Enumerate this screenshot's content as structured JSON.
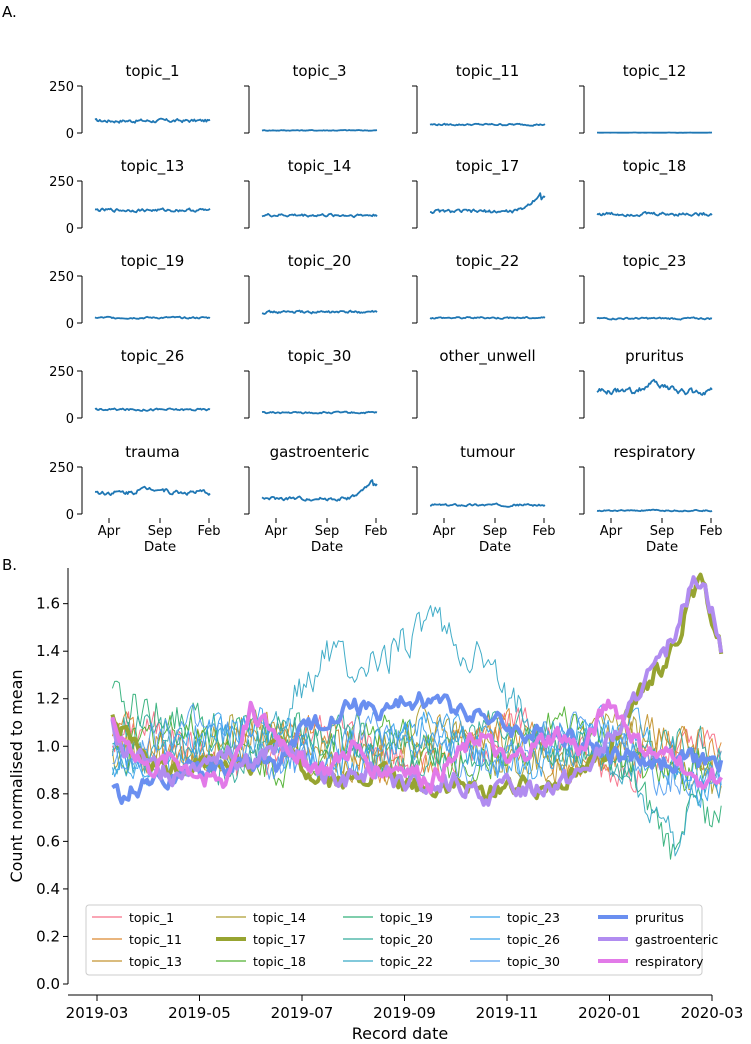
{
  "figure": {
    "panel_a_label": "A.",
    "panel_b_label": "B."
  },
  "chart_data": [
    {
      "type": "line",
      "layout": "small-multiples grid, 5 rows x 4 columns",
      "title": "",
      "xlabel": "Date",
      "ylabel": "",
      "ylim": [
        0,
        250
      ],
      "y_ticks": [
        "0",
        "250"
      ],
      "x_ticks": [
        "Apr",
        "Sep",
        "Feb"
      ],
      "series_color": "#1f77b4",
      "panels": [
        {
          "title": "topic_1",
          "level": 65,
          "noise": 8,
          "trend": "flat"
        },
        {
          "title": "topic_3",
          "level": 14,
          "noise": 2,
          "trend": "flat"
        },
        {
          "title": "topic_11",
          "level": 45,
          "noise": 4,
          "trend": "flat"
        },
        {
          "title": "topic_12",
          "level": 2,
          "noise": 0.5,
          "trend": "flat"
        },
        {
          "title": "topic_13",
          "level": 95,
          "noise": 7,
          "trend": "flat"
        },
        {
          "title": "topic_14",
          "level": 68,
          "noise": 7,
          "trend": "flat"
        },
        {
          "title": "topic_17",
          "level": 88,
          "noise": 8,
          "trend": "rise",
          "peak": 180
        },
        {
          "title": "topic_18",
          "level": 75,
          "noise": 8,
          "trend": "flat"
        },
        {
          "title": "topic_19",
          "level": 28,
          "noise": 4,
          "trend": "flat"
        },
        {
          "title": "topic_20",
          "level": 58,
          "noise": 6,
          "trend": "flat"
        },
        {
          "title": "topic_22",
          "level": 28,
          "noise": 4,
          "trend": "flat"
        },
        {
          "title": "topic_23",
          "level": 24,
          "noise": 4,
          "trend": "flat"
        },
        {
          "title": "topic_26",
          "level": 45,
          "noise": 5,
          "trend": "flat"
        },
        {
          "title": "topic_30",
          "level": 28,
          "noise": 4,
          "trend": "flat"
        },
        {
          "title": "other_unwell",
          "level": null,
          "noise": 0,
          "trend": "none"
        },
        {
          "title": "pruritus",
          "level": 140,
          "noise": 14,
          "trend": "hump",
          "peak": 185
        },
        {
          "title": "trauma",
          "level": 115,
          "noise": 10,
          "trend": "hump",
          "peak": 140
        },
        {
          "title": "gastroenteric",
          "level": 82,
          "noise": 8,
          "trend": "rise",
          "peak": 170
        },
        {
          "title": "tumour",
          "level": 48,
          "noise": 5,
          "trend": "flat"
        },
        {
          "title": "respiratory",
          "level": 18,
          "noise": 3,
          "trend": "flat"
        }
      ]
    },
    {
      "type": "line",
      "title": "",
      "xlabel": "Record date",
      "ylabel": "Count normalised to mean",
      "ylim": [
        0.0,
        1.75
      ],
      "y_ticks": [
        "0.0",
        "0.2",
        "0.4",
        "0.6",
        "0.8",
        "1.0",
        "1.2",
        "1.4",
        "1.6"
      ],
      "x_range_months": [
        0,
        12.2
      ],
      "x_ticks": [
        "2019-03",
        "2019-05",
        "2019-07",
        "2019-09",
        "2019-11",
        "2020-01",
        "2020-03"
      ],
      "legend_position": "bottom",
      "series": [
        {
          "name": "topic_1",
          "color": "#f77189",
          "kind": "thin"
        },
        {
          "name": "topic_11",
          "color": "#dc8932",
          "kind": "thin"
        },
        {
          "name": "topic_13",
          "color": "#c39532",
          "kind": "thin"
        },
        {
          "name": "topic_14",
          "color": "#ae9d31",
          "kind": "thin"
        },
        {
          "name": "topic_17",
          "color": "#97a431",
          "kind": "bold",
          "values": [
            [
              0.3,
              1.12
            ],
            [
              0.5,
              1.05
            ],
            [
              1.0,
              0.93
            ],
            [
              1.5,
              0.9
            ],
            [
              2.0,
              0.93
            ],
            [
              2.5,
              0.95
            ],
            [
              3.0,
              0.92
            ],
            [
              3.5,
              1.02
            ],
            [
              4.0,
              0.9
            ],
            [
              4.5,
              0.86
            ],
            [
              5.0,
              0.85
            ],
            [
              5.5,
              0.9
            ],
            [
              6.0,
              0.84
            ],
            [
              6.5,
              0.82
            ],
            [
              7.0,
              0.84
            ],
            [
              7.5,
              0.8
            ],
            [
              8.0,
              0.84
            ],
            [
              8.5,
              0.82
            ],
            [
              9.0,
              0.86
            ],
            [
              9.5,
              0.9
            ],
            [
              10.0,
              1.0
            ],
            [
              10.3,
              1.08
            ],
            [
              10.6,
              1.22
            ],
            [
              11.0,
              1.33
            ],
            [
              11.3,
              1.45
            ],
            [
              11.6,
              1.62
            ],
            [
              11.8,
              1.68
            ],
            [
              12.0,
              1.55
            ],
            [
              12.2,
              1.4
            ]
          ]
        },
        {
          "name": "topic_18",
          "color": "#50b131",
          "kind": "thin"
        },
        {
          "name": "topic_19",
          "color": "#33b07a",
          "kind": "thin",
          "values": [
            [
              0,
              1.2
            ],
            [
              1.0,
              1.15
            ],
            [
              2.0,
              1.1
            ],
            [
              3.0,
              1.05
            ],
            [
              4.0,
              1.05
            ],
            [
              5.0,
              1.02
            ],
            [
              6.0,
              1.0
            ],
            [
              7.0,
              0.98
            ],
            [
              8.0,
              1.0
            ],
            [
              9.0,
              1.0
            ],
            [
              10.0,
              0.95
            ],
            [
              10.5,
              0.82
            ],
            [
              11.0,
              0.65
            ],
            [
              11.2,
              0.55
            ],
            [
              11.5,
              0.75
            ],
            [
              12.0,
              0.72
            ],
            [
              12.2,
              0.74
            ]
          ]
        },
        {
          "name": "topic_20",
          "color": "#35ac9c",
          "kind": "thin"
        },
        {
          "name": "topic_22",
          "color": "#38a9c5",
          "kind": "thin",
          "values": [
            [
              0,
              0.92
            ],
            [
              1.0,
              0.95
            ],
            [
              2.0,
              0.98
            ],
            [
              3.0,
              1.0
            ],
            [
              3.5,
              1.1
            ],
            [
              4.0,
              1.25
            ],
            [
              4.5,
              1.4
            ],
            [
              5.0,
              1.3
            ],
            [
              5.5,
              1.35
            ],
            [
              6.0,
              1.45
            ],
            [
              6.5,
              1.55
            ],
            [
              7.0,
              1.42
            ],
            [
              7.5,
              1.35
            ],
            [
              8.0,
              1.2
            ],
            [
              8.5,
              1.1
            ],
            [
              9.0,
              1.05
            ],
            [
              9.5,
              1.0
            ],
            [
              10.0,
              0.95
            ],
            [
              10.5,
              0.85
            ],
            [
              11.0,
              0.7
            ],
            [
              11.3,
              0.55
            ],
            [
              11.6,
              0.8
            ],
            [
              12.0,
              0.9
            ],
            [
              12.2,
              1.0
            ]
          ]
        },
        {
          "name": "topic_23",
          "color": "#3ba3ec",
          "kind": "thin"
        },
        {
          "name": "topic_26",
          "color": "#3ba3ec",
          "kind": "thin"
        },
        {
          "name": "topic_30",
          "color": "#56a0f0",
          "kind": "thin"
        },
        {
          "name": "pruritus",
          "color": "#6a8ff0",
          "kind": "bold",
          "values": [
            [
              0.3,
              0.82
            ],
            [
              0.5,
              0.78
            ],
            [
              1.0,
              0.86
            ],
            [
              1.5,
              0.88
            ],
            [
              2.0,
              0.9
            ],
            [
              2.5,
              0.92
            ],
            [
              3.0,
              0.94
            ],
            [
              3.5,
              0.92
            ],
            [
              4.0,
              1.06
            ],
            [
              4.5,
              1.12
            ],
            [
              5.0,
              1.18
            ],
            [
              5.5,
              1.14
            ],
            [
              6.0,
              1.18
            ],
            [
              6.5,
              1.2
            ],
            [
              7.0,
              1.16
            ],
            [
              7.5,
              1.14
            ],
            [
              8.0,
              1.08
            ],
            [
              8.5,
              1.04
            ],
            [
              9.0,
              1.06
            ],
            [
              9.5,
              1.02
            ],
            [
              10.0,
              0.97
            ],
            [
              10.5,
              0.95
            ],
            [
              11.0,
              0.93
            ],
            [
              11.5,
              0.95
            ],
            [
              12.0,
              0.93
            ],
            [
              12.2,
              0.92
            ]
          ]
        },
        {
          "name": "gastroenteric",
          "color": "#b18cf0",
          "kind": "bold",
          "values": [
            [
              0.3,
              1.1
            ],
            [
              0.5,
              1.0
            ],
            [
              1.0,
              0.92
            ],
            [
              1.5,
              0.88
            ],
            [
              2.0,
              0.95
            ],
            [
              2.5,
              0.98
            ],
            [
              3.0,
              0.92
            ],
            [
              3.5,
              1.0
            ],
            [
              4.0,
              0.94
            ],
            [
              4.5,
              0.88
            ],
            [
              5.0,
              0.86
            ],
            [
              5.5,
              0.9
            ],
            [
              6.0,
              0.84
            ],
            [
              6.5,
              0.82
            ],
            [
              7.0,
              0.85
            ],
            [
              7.5,
              0.78
            ],
            [
              8.0,
              0.83
            ],
            [
              8.5,
              0.82
            ],
            [
              9.0,
              0.85
            ],
            [
              9.5,
              0.9
            ],
            [
              10.0,
              1.02
            ],
            [
              10.3,
              1.1
            ],
            [
              10.6,
              1.25
            ],
            [
              11.0,
              1.35
            ],
            [
              11.3,
              1.5
            ],
            [
              11.6,
              1.68
            ],
            [
              11.8,
              1.72
            ],
            [
              12.0,
              1.58
            ],
            [
              12.2,
              1.38
            ]
          ]
        },
        {
          "name": "respiratory",
          "color": "#e27ae8",
          "kind": "bold",
          "values": [
            [
              0.3,
              1.1
            ],
            [
              0.5,
              1.05
            ],
            [
              1.0,
              0.9
            ],
            [
              1.5,
              0.95
            ],
            [
              2.0,
              0.88
            ],
            [
              2.5,
              0.85
            ],
            [
              3.0,
              1.15
            ],
            [
              3.5,
              1.05
            ],
            [
              4.0,
              0.95
            ],
            [
              4.5,
              0.9
            ],
            [
              5.0,
              1.0
            ],
            [
              5.5,
              0.9
            ],
            [
              6.0,
              0.92
            ],
            [
              6.5,
              0.85
            ],
            [
              7.0,
              0.95
            ],
            [
              7.5,
              1.05
            ],
            [
              8.0,
              0.92
            ],
            [
              8.5,
              1.0
            ],
            [
              9.0,
              1.05
            ],
            [
              9.5,
              0.98
            ],
            [
              10.0,
              1.2
            ],
            [
              10.3,
              1.1
            ],
            [
              10.6,
              1.0
            ],
            [
              11.0,
              0.95
            ],
            [
              11.3,
              0.98
            ],
            [
              11.6,
              0.85
            ],
            [
              12.0,
              0.88
            ],
            [
              12.2,
              0.86
            ]
          ]
        }
      ]
    }
  ]
}
